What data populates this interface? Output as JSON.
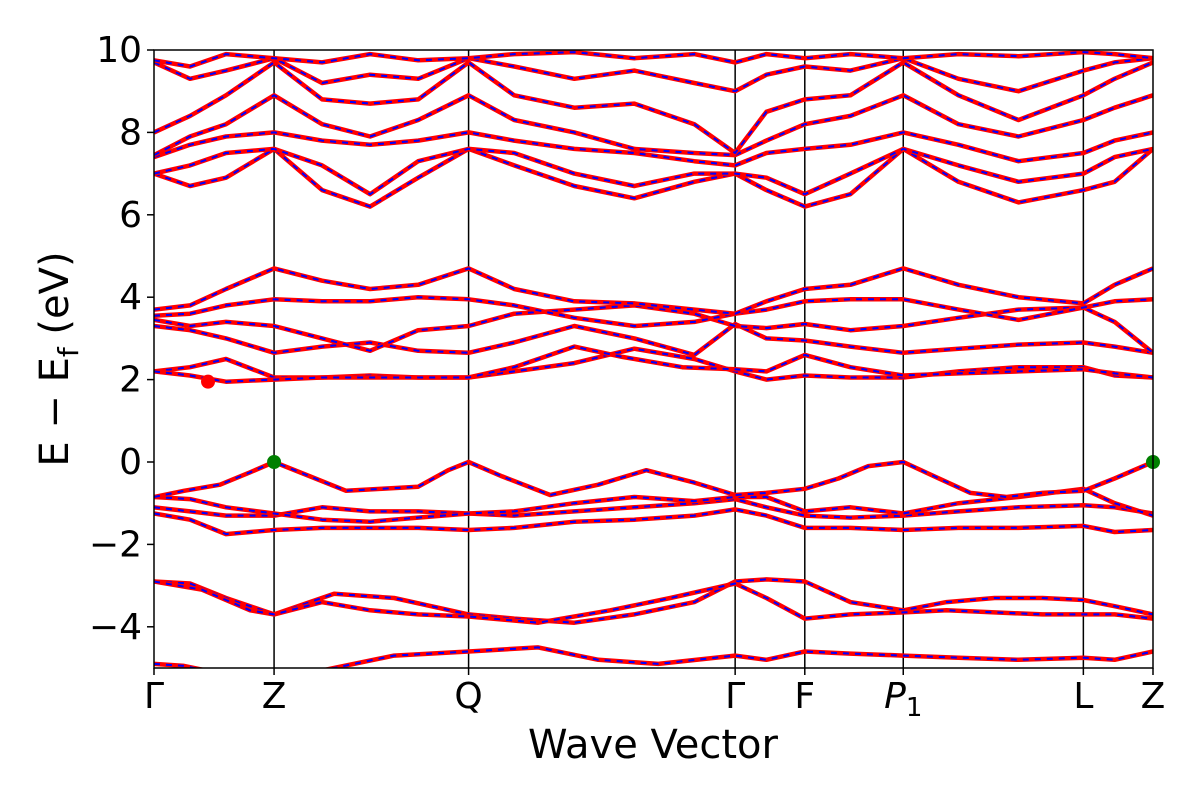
{
  "chart_data": {
    "type": "line",
    "title": "",
    "xlabel": "Wave Vector",
    "ylabel": "E − E",
    "ylabel_sub": "f",
    "ylabel_unit": " (eV)",
    "ylim": [
      -5,
      10
    ],
    "xlim": [
      0,
      8.32
    ],
    "yticks": [
      -4,
      -2,
      0,
      2,
      4,
      6,
      8,
      10
    ],
    "ytick_labels": [
      "−4",
      "−2",
      "0",
      "2",
      "4",
      "6",
      "8",
      "10"
    ],
    "kpoints": [
      {
        "label": "Γ",
        "x": 0.0
      },
      {
        "label": "Z",
        "x": 1.0
      },
      {
        "label": "Q",
        "x": 2.62
      },
      {
        "label": "Γ",
        "x": 4.84
      },
      {
        "label": "F",
        "x": 5.42
      },
      {
        "label": "P",
        "sub": "1",
        "italic": true,
        "x": 6.24
      },
      {
        "label": "L",
        "x": 7.74
      },
      {
        "label": "Z",
        "x": 8.32
      }
    ],
    "series_colors": {
      "spin_up": "#ff0000",
      "spin_down": "#0000ff"
    },
    "markers": [
      {
        "role": "cbm",
        "x": 0.45,
        "y": 1.95,
        "color": "#ff0000"
      },
      {
        "role": "vbm",
        "x": 1.0,
        "y": 0.0,
        "color": "#008000"
      },
      {
        "role": "vbm",
        "x": 8.32,
        "y": 0.0,
        "color": "#008000"
      }
    ],
    "bands": [
      {
        "x": [
          0,
          0.25,
          0.5,
          0.75,
          1.0,
          1.5,
          2.0,
          2.62,
          3.2,
          3.7,
          4.2,
          4.84,
          5.1,
          5.42,
          5.8,
          6.24,
          6.7,
          7.2,
          7.74,
          8.0,
          8.32
        ],
        "y": [
          -4.9,
          -4.95,
          -5.1,
          -5.2,
          -5.3,
          -5.0,
          -4.7,
          -4.6,
          -4.5,
          -4.8,
          -4.9,
          -4.7,
          -4.8,
          -4.6,
          -4.65,
          -4.7,
          -4.75,
          -4.8,
          -4.75,
          -4.8,
          -4.6
        ]
      },
      {
        "x": [
          0,
          0.3,
          0.6,
          1.0,
          1.5,
          2.0,
          2.62,
          3.0,
          3.5,
          4.0,
          4.5,
          4.84,
          5.1,
          5.42,
          5.8,
          6.24,
          6.6,
          7.0,
          7.4,
          7.74,
          8.0,
          8.32
        ],
        "y": [
          -2.9,
          -2.95,
          -3.3,
          -3.7,
          -3.2,
          -3.3,
          -3.7,
          -3.8,
          -3.9,
          -3.7,
          -3.4,
          -2.9,
          -2.85,
          -2.9,
          -3.4,
          -3.6,
          -3.4,
          -3.3,
          -3.3,
          -3.35,
          -3.5,
          -3.7
        ]
      },
      {
        "x": [
          0,
          0.4,
          0.8,
          1.0,
          1.4,
          1.8,
          2.2,
          2.62,
          3.2,
          3.8,
          4.3,
          4.84,
          5.1,
          5.42,
          5.8,
          6.24,
          6.6,
          7.0,
          7.4,
          7.74,
          8.0,
          8.32
        ],
        "y": [
          -2.9,
          -3.1,
          -3.6,
          -3.7,
          -3.4,
          -3.6,
          -3.7,
          -3.75,
          -3.9,
          -3.6,
          -3.3,
          -2.95,
          -3.3,
          -3.8,
          -3.7,
          -3.65,
          -3.6,
          -3.65,
          -3.7,
          -3.7,
          -3.7,
          -3.8
        ]
      },
      {
        "x": [
          0,
          0.3,
          0.6,
          1.0,
          1.4,
          1.8,
          2.2,
          2.62,
          3.0,
          3.5,
          4.0,
          4.5,
          4.84,
          5.1,
          5.42,
          5.8,
          6.24,
          6.7,
          7.2,
          7.74,
          8.0,
          8.32
        ],
        "y": [
          -1.25,
          -1.4,
          -1.75,
          -1.65,
          -1.6,
          -1.6,
          -1.6,
          -1.65,
          -1.6,
          -1.45,
          -1.4,
          -1.3,
          -1.15,
          -1.3,
          -1.6,
          -1.6,
          -1.65,
          -1.6,
          -1.6,
          -1.55,
          -1.7,
          -1.65
        ]
      },
      {
        "x": [
          0,
          0.3,
          0.6,
          1.0,
          1.4,
          1.8,
          2.2,
          2.62,
          3.0,
          3.5,
          4.0,
          4.5,
          4.84,
          5.1,
          5.42,
          5.8,
          6.24,
          6.7,
          7.2,
          7.74,
          8.0,
          8.32
        ],
        "y": [
          -1.1,
          -1.2,
          -1.3,
          -1.3,
          -1.1,
          -1.2,
          -1.2,
          -1.25,
          -1.3,
          -1.2,
          -1.1,
          -1.0,
          -0.9,
          -1.1,
          -1.3,
          -1.35,
          -1.3,
          -1.2,
          -1.1,
          -1.05,
          -1.1,
          -1.25
        ]
      },
      {
        "x": [
          0,
          0.3,
          0.6,
          1.0,
          1.4,
          1.8,
          2.2,
          2.62,
          3.0,
          3.5,
          4.0,
          4.5,
          4.84,
          5.1,
          5.42,
          5.8,
          6.24,
          6.7,
          7.2,
          7.74,
          8.0,
          8.32
        ],
        "y": [
          -0.85,
          -0.9,
          -1.1,
          -1.25,
          -1.4,
          -1.45,
          -1.35,
          -1.25,
          -1.2,
          -1.0,
          -0.85,
          -0.95,
          -0.85,
          -0.85,
          -1.2,
          -1.1,
          -1.25,
          -1.0,
          -0.85,
          -0.65,
          -1.0,
          -1.3
        ]
      },
      {
        "x": [
          0,
          0.25,
          0.55,
          0.8,
          1.0,
          1.3,
          1.6,
          1.9,
          2.2,
          2.45,
          2.62,
          2.9,
          3.3,
          3.7,
          4.1,
          4.5,
          4.84,
          5.1,
          5.42,
          5.7,
          5.95,
          6.24,
          6.5,
          6.8,
          7.1,
          7.4,
          7.74,
          8.0,
          8.32
        ],
        "y": [
          -0.85,
          -0.7,
          -0.55,
          -0.25,
          0.0,
          -0.35,
          -0.7,
          -0.65,
          -0.6,
          -0.2,
          0.0,
          -0.35,
          -0.8,
          -0.55,
          -0.2,
          -0.5,
          -0.8,
          -0.75,
          -0.65,
          -0.4,
          -0.1,
          0.0,
          -0.35,
          -0.75,
          -0.85,
          -0.75,
          -0.7,
          -0.4,
          0.0
        ]
      },
      {
        "x": [
          0,
          0.3,
          0.6,
          1.0,
          1.4,
          1.8,
          2.2,
          2.62,
          3.0,
          3.5,
          4.0,
          4.5,
          4.84,
          5.1,
          5.42,
          5.8,
          6.24,
          6.7,
          7.2,
          7.74,
          8.0,
          8.32
        ],
        "y": [
          2.2,
          2.3,
          2.5,
          2.05,
          2.05,
          2.1,
          2.05,
          2.05,
          2.2,
          2.4,
          2.75,
          2.5,
          2.2,
          2.0,
          2.1,
          2.05,
          2.05,
          2.2,
          2.3,
          2.3,
          2.1,
          2.05
        ]
      },
      {
        "x": [
          0,
          0.3,
          0.6,
          1.0,
          1.4,
          1.8,
          2.2,
          2.62,
          3.0,
          3.5,
          3.9,
          4.4,
          4.84,
          5.1,
          5.42,
          5.8,
          6.24,
          6.7,
          7.2,
          7.74,
          8.0,
          8.32
        ],
        "y": [
          2.2,
          2.1,
          1.95,
          2.0,
          2.05,
          2.05,
          2.05,
          2.05,
          2.3,
          2.8,
          2.55,
          2.3,
          2.25,
          2.2,
          2.6,
          2.3,
          2.1,
          2.15,
          2.2,
          2.25,
          2.15,
          2.05
        ]
      },
      {
        "x": [
          0,
          0.3,
          0.6,
          1.0,
          1.4,
          1.8,
          2.2,
          2.62,
          3.0,
          3.5,
          4.0,
          4.5,
          4.84,
          5.1,
          5.42,
          5.8,
          6.24,
          6.7,
          7.2,
          7.74,
          8.0,
          8.32
        ],
        "y": [
          3.3,
          3.2,
          3.0,
          2.65,
          2.8,
          2.9,
          2.7,
          2.65,
          2.9,
          3.3,
          3.0,
          2.6,
          3.35,
          3.0,
          2.95,
          2.8,
          2.65,
          2.75,
          2.85,
          2.9,
          2.8,
          2.65
        ]
      },
      {
        "x": [
          0,
          0.3,
          0.6,
          1.0,
          1.4,
          1.8,
          2.2,
          2.62,
          3.0,
          3.5,
          4.0,
          4.5,
          4.84,
          5.1,
          5.42,
          5.8,
          6.24,
          6.7,
          7.2,
          7.74,
          8.0,
          8.32
        ],
        "y": [
          3.45,
          3.3,
          3.4,
          3.3,
          3.0,
          2.7,
          3.2,
          3.3,
          3.6,
          3.7,
          3.8,
          3.6,
          3.3,
          3.25,
          3.35,
          3.2,
          3.3,
          3.5,
          3.7,
          3.75,
          3.4,
          2.65
        ]
      },
      {
        "x": [
          0,
          0.3,
          0.6,
          1.0,
          1.4,
          1.8,
          2.2,
          2.62,
          3.0,
          3.5,
          4.0,
          4.5,
          4.84,
          5.1,
          5.42,
          5.8,
          6.24,
          6.7,
          7.2,
          7.74,
          8.0,
          8.32
        ],
        "y": [
          3.55,
          3.6,
          3.8,
          3.95,
          3.9,
          3.9,
          4.0,
          3.95,
          3.8,
          3.5,
          3.3,
          3.4,
          3.6,
          3.7,
          3.9,
          3.95,
          3.95,
          3.7,
          3.45,
          3.75,
          3.9,
          3.95
        ]
      },
      {
        "x": [
          0,
          0.3,
          0.6,
          1.0,
          1.4,
          1.8,
          2.2,
          2.62,
          3.0,
          3.5,
          4.0,
          4.5,
          4.84,
          5.1,
          5.42,
          5.8,
          6.24,
          6.7,
          7.2,
          7.74,
          8.0,
          8.32
        ],
        "y": [
          3.7,
          3.8,
          4.2,
          4.7,
          4.4,
          4.2,
          4.3,
          4.7,
          4.2,
          3.9,
          3.85,
          3.7,
          3.6,
          3.9,
          4.2,
          4.3,
          4.7,
          4.3,
          4.0,
          3.85,
          4.3,
          4.7
        ]
      },
      {
        "x": [
          0,
          0.3,
          0.6,
          1.0,
          1.4,
          1.8,
          2.2,
          2.62,
          3.0,
          3.5,
          4.0,
          4.5,
          4.84,
          5.1,
          5.42,
          5.8,
          6.24,
          6.7,
          7.2,
          7.74,
          8.0,
          8.32
        ],
        "y": [
          7.0,
          6.7,
          6.9,
          7.6,
          6.6,
          6.2,
          6.9,
          7.6,
          7.2,
          6.7,
          6.4,
          6.8,
          7.0,
          6.6,
          6.2,
          6.5,
          7.6,
          6.8,
          6.3,
          6.6,
          6.8,
          7.6
        ]
      },
      {
        "x": [
          0,
          0.3,
          0.6,
          1.0,
          1.4,
          1.8,
          2.2,
          2.62,
          3.0,
          3.5,
          4.0,
          4.5,
          4.84,
          5.1,
          5.42,
          5.8,
          6.24,
          6.7,
          7.2,
          7.74,
          8.0,
          8.32
        ],
        "y": [
          7.0,
          7.2,
          7.5,
          7.6,
          7.2,
          6.5,
          7.3,
          7.6,
          7.5,
          7.0,
          6.7,
          7.0,
          7.0,
          6.9,
          6.5,
          7.0,
          7.6,
          7.2,
          6.8,
          7.0,
          7.4,
          7.6
        ]
      },
      {
        "x": [
          0,
          0.3,
          0.6,
          1.0,
          1.4,
          1.8,
          2.2,
          2.62,
          3.0,
          3.5,
          4.0,
          4.5,
          4.84,
          5.1,
          5.42,
          5.8,
          6.24,
          6.7,
          7.2,
          7.74,
          8.0,
          8.32
        ],
        "y": [
          7.4,
          7.7,
          7.9,
          8.0,
          7.8,
          7.7,
          7.8,
          8.0,
          7.8,
          7.6,
          7.5,
          7.3,
          7.2,
          7.5,
          7.6,
          7.7,
          8.0,
          7.7,
          7.3,
          7.5,
          7.8,
          8.0
        ]
      },
      {
        "x": [
          0,
          0.3,
          0.6,
          1.0,
          1.4,
          1.8,
          2.2,
          2.62,
          3.0,
          3.5,
          4.0,
          4.5,
          4.84,
          5.1,
          5.42,
          5.8,
          6.24,
          6.7,
          7.2,
          7.74,
          8.0,
          8.32
        ],
        "y": [
          7.45,
          7.9,
          8.2,
          8.9,
          8.2,
          7.9,
          8.3,
          8.9,
          8.3,
          8.0,
          7.6,
          7.5,
          7.45,
          7.8,
          8.2,
          8.4,
          8.9,
          8.2,
          7.9,
          8.3,
          8.6,
          8.9
        ]
      },
      {
        "x": [
          0,
          0.3,
          0.6,
          1.0,
          1.4,
          1.8,
          2.2,
          2.62,
          3.0,
          3.5,
          4.0,
          4.5,
          4.84,
          5.1,
          5.42,
          5.8,
          6.24,
          6.7,
          7.2,
          7.74,
          8.0,
          8.32
        ],
        "y": [
          8.0,
          8.4,
          8.9,
          9.7,
          8.8,
          8.7,
          8.8,
          9.7,
          8.9,
          8.6,
          8.7,
          8.2,
          7.5,
          8.5,
          8.8,
          8.9,
          9.7,
          8.9,
          8.3,
          8.9,
          9.3,
          9.7
        ]
      },
      {
        "x": [
          0,
          0.3,
          0.6,
          1.0,
          1.4,
          1.8,
          2.2,
          2.62,
          3.0,
          3.5,
          4.0,
          4.5,
          4.84,
          5.1,
          5.42,
          5.8,
          6.24,
          6.7,
          7.2,
          7.74,
          8.0,
          8.32
        ],
        "y": [
          9.7,
          9.3,
          9.5,
          9.8,
          9.2,
          9.4,
          9.3,
          9.8,
          9.6,
          9.3,
          9.5,
          9.2,
          9.0,
          9.4,
          9.6,
          9.5,
          9.8,
          9.3,
          9.0,
          9.5,
          9.7,
          9.8
        ]
      },
      {
        "x": [
          0,
          0.3,
          0.6,
          1.0,
          1.4,
          1.8,
          2.2,
          2.62,
          3.0,
          3.5,
          4.0,
          4.5,
          4.84,
          5.1,
          5.42,
          5.8,
          6.24,
          6.7,
          7.2,
          7.74,
          8.0,
          8.32
        ],
        "y": [
          9.75,
          9.6,
          9.9,
          9.8,
          9.7,
          9.9,
          9.75,
          9.8,
          9.9,
          9.95,
          9.8,
          9.9,
          9.7,
          9.9,
          9.8,
          9.9,
          9.8,
          9.9,
          9.85,
          9.95,
          9.9,
          9.8
        ]
      }
    ]
  }
}
